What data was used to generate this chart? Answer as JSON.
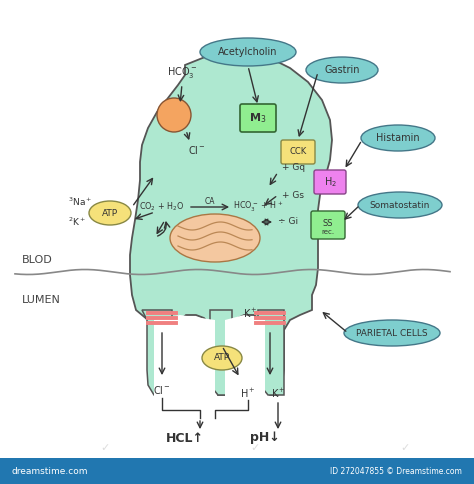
{
  "bg_color": "#ffffff",
  "cell_color": "#aee8d0",
  "cell_edge_color": "#555555",
  "footer_color": "#2177b0",
  "footer_text": "dreamstime.com",
  "footer_id": "ID 272047855 © Dreamstime.com",
  "ellipse_color": "#7ecece",
  "ellipse_edge": "#447788",
  "atp_color": "#f5e17a",
  "atp_edge": "#888844",
  "orange_color": "#f4a460",
  "orange_edge": "#885533",
  "mito_color": "#f4c8a0",
  "mito_edge": "#aa7744",
  "m3_color": "#90ee90",
  "m3_edge": "#336633",
  "cck_color": "#f5e17a",
  "cck_edge": "#888844",
  "h2_color": "#ee82ee",
  "h2_edge": "#884488",
  "ss_color": "#90ee90",
  "ss_edge": "#336633",
  "channel_color": "#f08080",
  "arrow_color": "#333333",
  "text_color": "#333333",
  "blod_label": "BLOD",
  "lumen_label": "LUMEN",
  "parietal_label": "PARIETAL CELLS"
}
